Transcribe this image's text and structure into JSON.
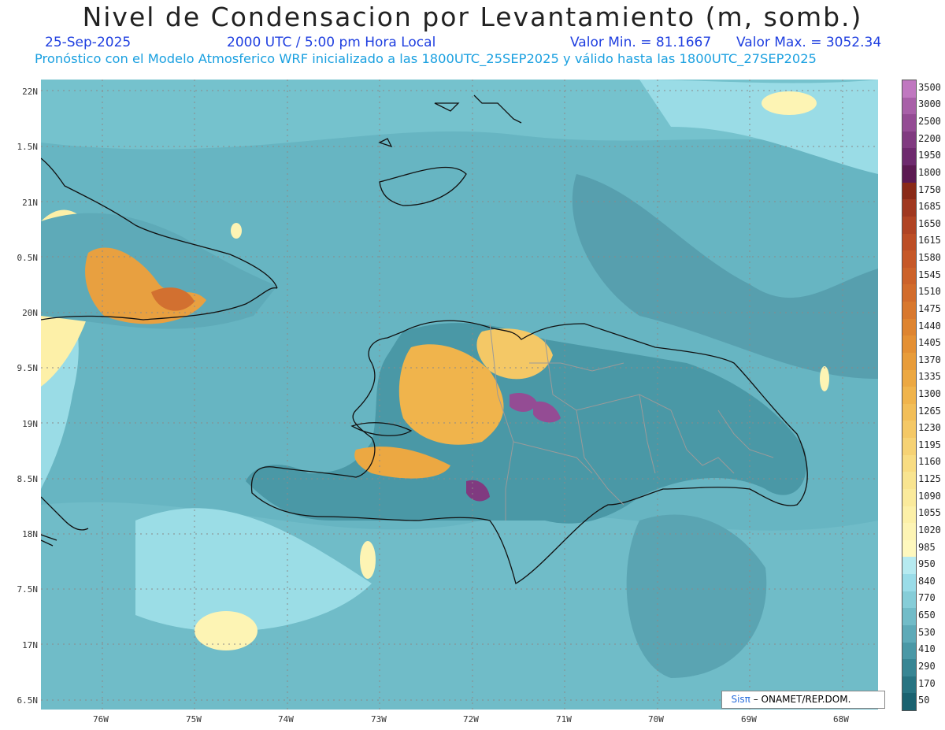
{
  "title": "Nivel de Condensacion por Levantamiento (m, somb.)",
  "date": "25-Sep-2025",
  "time": "2000 UTC / 5:00 pm Hora Local",
  "min_label": "Valor Min. = 81.1667",
  "max_label": "Valor Max. = 3052.34",
  "forecast_line": "Pronóstico con el Modelo Atmosferico WRF inicializado a las 1800UTC_25SEP2025 y válido hasta las  1800UTC_27SEP2025",
  "credit": {
    "sis": "Sis",
    "pi": "π",
    "rest": " – ONAMET/REP.DOM."
  },
  "lat_labels": [
    "22N",
    "1.5N",
    "21N",
    "0.5N",
    "20N",
    "9.5N",
    "19N",
    "8.5N",
    "18N",
    "7.5N",
    "17N",
    "6.5N"
  ],
  "lon_labels": [
    "76W",
    "75W",
    "74W",
    "73W",
    "72W",
    "71W",
    "70W",
    "69W",
    "68W"
  ],
  "colorbar": {
    "labels": [
      "3500",
      "3000",
      "2500",
      "2200",
      "1950",
      "1800",
      "1750",
      "1685",
      "1650",
      "1615",
      "1580",
      "1545",
      "1510",
      "1475",
      "1440",
      "1405",
      "1370",
      "1335",
      "1300",
      "1265",
      "1230",
      "1195",
      "1160",
      "1125",
      "1090",
      "1055",
      "1020",
      "985",
      "950",
      "840",
      "770",
      "650",
      "530",
      "410",
      "290",
      "170",
      "50"
    ],
    "colors": [
      "#c078c0",
      "#a860a8",
      "#944c94",
      "#803a80",
      "#6e2a6e",
      "#5c1a52",
      "#8a2a18",
      "#a03820",
      "#b04424",
      "#bc4e26",
      "#c65828",
      "#cc622a",
      "#d26c2c",
      "#d8782e",
      "#de8430",
      "#e49034",
      "#e89c3a",
      "#eca842",
      "#f0b44c",
      "#f2be58",
      "#f4c866",
      "#f6d274",
      "#f8dc82",
      "#f8e490",
      "#faea9c",
      "#fcf0a8",
      "#fdf4b4",
      "#fef8be",
      "#b6eaf0",
      "#9adce8",
      "#86cdd8",
      "#72bcc8",
      "#5eaab8",
      "#4a98a6",
      "#388694",
      "#287482",
      "#1a6270"
    ]
  },
  "colors": {
    "ocean": "#67b5c2",
    "coast": "#111111",
    "province": "#9a9a9a"
  }
}
